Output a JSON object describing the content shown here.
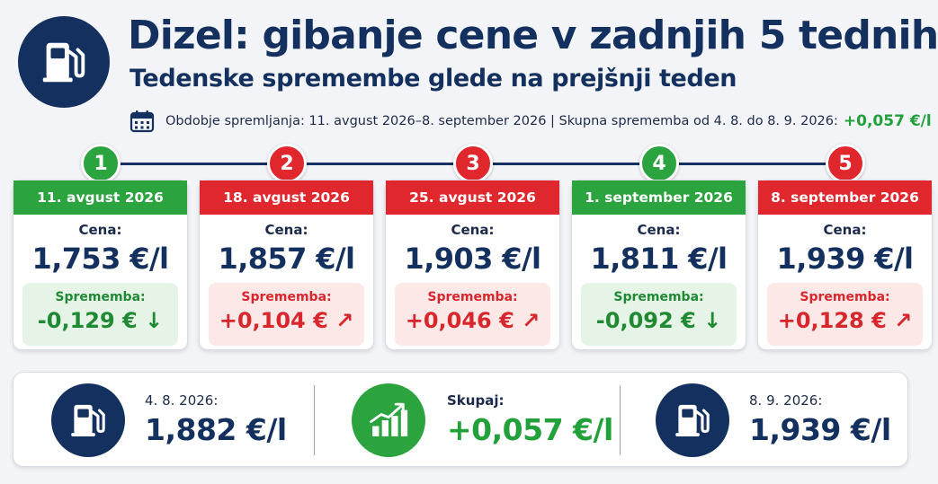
{
  "header": {
    "title": "Dizel: gibanje cene v zadnjih 5 tednih",
    "subtitle": "Tedenske spremembe glede na prejšnji teden",
    "period_text": "Obdobje spremljanja: 11. avgust 2026–8. september 2026 | Skupna sprememba od 4. 8. do 8. 9. 2026:",
    "total_change": "+0,057 €/l",
    "icons": {
      "logo": "fuel-pump-icon",
      "period": "calendar-icon"
    }
  },
  "weeks": [
    {
      "number": "1",
      "date": "11. avgust 2026",
      "price_label": "Cena:",
      "price": "1,753 €/l",
      "change_label": "Sprememba:",
      "change": "-0,129 € ↓",
      "trend": "down"
    },
    {
      "number": "2",
      "date": "18. avgust 2026",
      "price_label": "Cena:",
      "price": "1,857 €/l",
      "change_label": "Sprememba:",
      "change": "+0,104 € ↗",
      "trend": "up"
    },
    {
      "number": "3",
      "date": "25. avgust 2026",
      "price_label": "Cena:",
      "price": "1,903 €/l",
      "change_label": "Sprememba:",
      "change": "+0,046 € ↗",
      "trend": "up"
    },
    {
      "number": "4",
      "date": "1. september 2026",
      "price_label": "Cena:",
      "price": "1,811 €/l",
      "change_label": "Sprememba:",
      "change": "-0,092 € ↓",
      "trend": "down"
    },
    {
      "number": "5",
      "date": "8. september 2026",
      "price_label": "Cena:",
      "price": "1,939 €/l",
      "change_label": "Sprememba:",
      "change": "+0,128 € ↗",
      "trend": "up"
    }
  ],
  "summary": {
    "start": {
      "label": "4. 8. 2026:",
      "value": "1,882 €/l",
      "icon": "fuel-pump-icon"
    },
    "total": {
      "label": "Skupaj:",
      "value": "+0,057 €/l",
      "icon": "growth-chart-icon"
    },
    "end": {
      "label": "8. 9. 2026:",
      "value": "1,939 €/l",
      "icon": "fuel-pump-icon"
    }
  },
  "colors": {
    "navy": "#14305e",
    "green": "#2ba33e",
    "red": "#e0272d",
    "green_bg": "#e6f4e7",
    "red_bg": "#fde8e8"
  }
}
